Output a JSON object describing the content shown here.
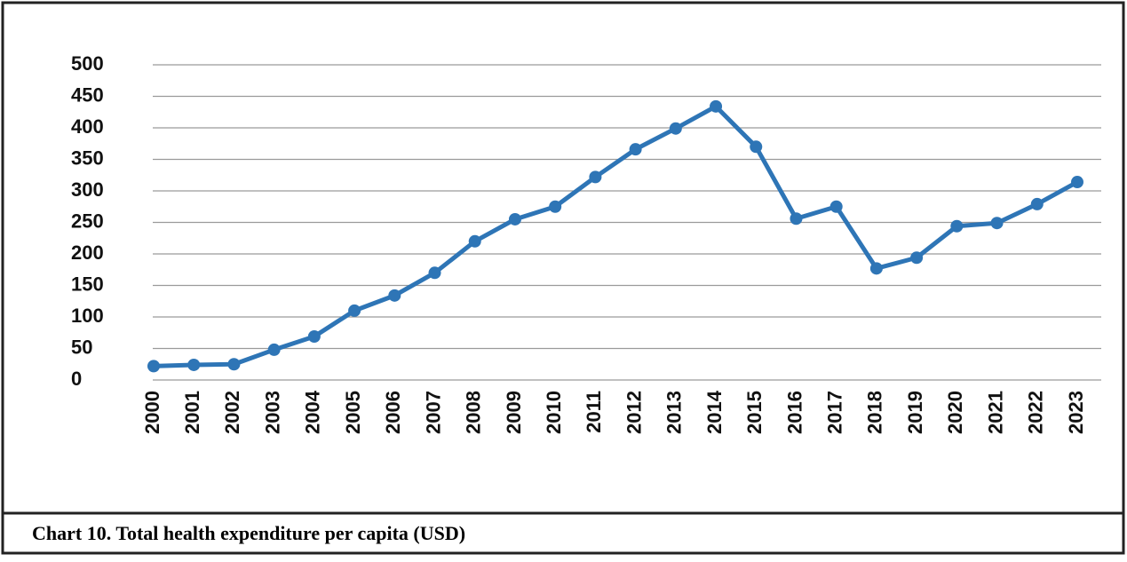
{
  "chart_data": {
    "type": "line",
    "title": "Chart 10. Total health expenditure per capita (USD)",
    "categories": [
      "2000",
      "2001",
      "2002",
      "2003",
      "2004",
      "2005",
      "2006",
      "2007",
      "2008",
      "2009",
      "2010",
      "2011",
      "2012",
      "2013",
      "2014",
      "2015",
      "2016",
      "2017",
      "2018",
      "2019",
      "2020",
      "2021",
      "2022",
      "2023"
    ],
    "series": [
      {
        "name": "Total health expenditure per capita",
        "color": "#2e75b6",
        "values": [
          22,
          24,
          25,
          48,
          69,
          110,
          134,
          170,
          220,
          255,
          275,
          322,
          366,
          399,
          434,
          370,
          256,
          275,
          177,
          194,
          244,
          249,
          279,
          314
        ]
      }
    ],
    "ylim": [
      0,
      500
    ],
    "yticks": [
      0,
      50,
      100,
      150,
      200,
      250,
      300,
      350,
      400,
      450,
      500
    ],
    "grid": true
  }
}
